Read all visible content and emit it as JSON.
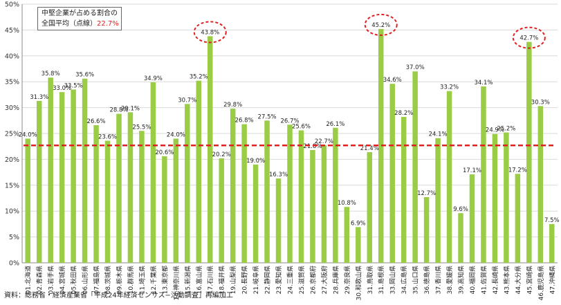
{
  "chart_data": {
    "type": "bar",
    "ylim": [
      0,
      50
    ],
    "yticks": [
      "0%",
      "5%",
      "10%",
      "15%",
      "20%",
      "25%",
      "30%",
      "35%",
      "40%",
      "45%",
      "50%"
    ],
    "categories": [
      "01.北海道",
      "02.青森県",
      "03.岩手県",
      "04.宮城県",
      "05.秋田県",
      "06.山形県",
      "07.福島県",
      "08.茨城県",
      "09.栃木県",
      "10.群馬県",
      "11.埼玉県",
      "12.千葉県",
      "13.東京都",
      "14.神奈川県",
      "15.新潟県",
      "16.富山県",
      "17.石川県",
      "18.福井県",
      "19.山梨県",
      "20.長野県",
      "21.岐阜県",
      "22.静岡県",
      "23.愛知県",
      "24.三重県",
      "25.滋賀県",
      "26.京都府",
      "27.大阪府",
      "28.兵庫県",
      "29.奈良県",
      "30.和歌山県",
      "31.鳥取県",
      "31.島根県",
      "33.岡山県",
      "34.広島県",
      "35.山口県",
      "36.徳島県",
      "37.香川県",
      "38.愛媛県",
      "39.高知県",
      "40.福岡県",
      "41.佐賀県",
      "42.長崎県",
      "43.熊本県",
      "44.大分県",
      "45.宮崎県",
      "46.鹿児島県",
      "47.沖縄県"
    ],
    "values": [
      24.0,
      31.3,
      35.8,
      33.0,
      33.5,
      35.6,
      26.6,
      23.6,
      28.8,
      29.1,
      25.5,
      34.9,
      20.6,
      24.0,
      30.7,
      35.2,
      43.8,
      20.2,
      29.8,
      26.8,
      19.0,
      27.5,
      16.3,
      26.7,
      25.6,
      21.8,
      22.7,
      26.1,
      10.8,
      6.9,
      21.4,
      45.2,
      34.6,
      28.2,
      37.0,
      12.7,
      24.1,
      33.2,
      9.6,
      17.1,
      34.1,
      24.9,
      25.2,
      17.2,
      42.7,
      30.3,
      7.5
    ],
    "value_labels": [
      "24.0%",
      "31.3%",
      "35.8%",
      "33.0%",
      "33.5%",
      "35.6%",
      "26.6%",
      "23.6%",
      "28.8%",
      "29.1%",
      "25.5%",
      "34.9%",
      "20.6%",
      "24.0%",
      "30.7%",
      "35.2%",
      "43.8%",
      "20.2%",
      "29.8%",
      "26.8%",
      "19.0%",
      "27.5%",
      "16.3%",
      "26.7%",
      "25.6%",
      "21.8%",
      "22.7%",
      "26.1%",
      "10.8%",
      "6.9%",
      "21.4%",
      "45.2%",
      "34.6%",
      "28.2%",
      "37.0%",
      "12.7%",
      "24.1%",
      "33.2%",
      "9.6%",
      "17.1%",
      "34.1%",
      "24.9%",
      "25.2%",
      "17.2%",
      "42.7%",
      "30.3%",
      "7.5%"
    ],
    "average_line": 22.7,
    "highlighted": [
      "17.石川県",
      "31.島根県",
      "45.宮崎県"
    ],
    "bar_color": "#9acd45",
    "average_color": "#e02020",
    "grid": true
  },
  "legend": {
    "line1": "中堅企業が占める割合の",
    "line2_prefix": "全国平均（点線）",
    "line2_value": "22.7%"
  },
  "source_note": "資料：総務省・経済産業省「平成24年経済センサス−活動調査」再編加工"
}
